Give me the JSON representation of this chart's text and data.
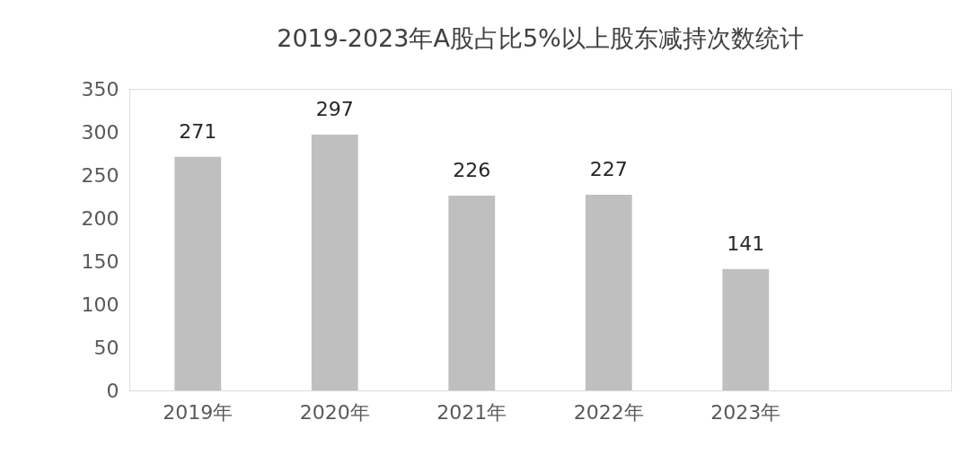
{
  "chart_data": {
    "type": "bar",
    "title": "2019-2023年A股占比5%以上股东减持次数统计",
    "categories": [
      "2019年",
      "2020年",
      "2021年",
      "2022年",
      "2023年",
      null
    ],
    "values": [
      271,
      297,
      226,
      227,
      141,
      null
    ],
    "color": "#bfbfbf",
    "ylim": [
      0,
      350
    ],
    "yticks": [
      0,
      50,
      100,
      150,
      200,
      250,
      300,
      350
    ],
    "data_labels": true,
    "grid": false
  }
}
